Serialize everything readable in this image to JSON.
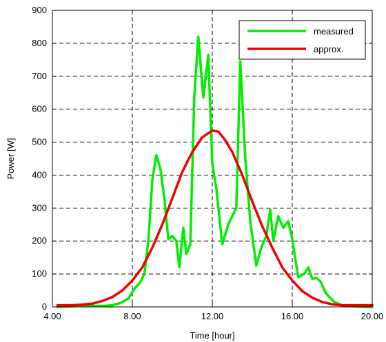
{
  "chart_data": {
    "type": "line",
    "xlabel": "Time [hour]",
    "ylabel": "Power [W]",
    "xlim": [
      4,
      20
    ],
    "ylim": [
      0,
      900
    ],
    "xticks": [
      4,
      8,
      12,
      16,
      20
    ],
    "xtick_labels": [
      "4.00",
      "8.00",
      "12.00",
      "16.00",
      "20.00"
    ],
    "yticks": [
      0,
      100,
      200,
      300,
      400,
      500,
      600,
      700,
      800,
      900
    ],
    "ytick_labels": [
      "0",
      "100",
      "200",
      "300",
      "400",
      "500",
      "600",
      "700",
      "800",
      "900"
    ],
    "grid": true,
    "legend_position": "top-right",
    "series": [
      {
        "name": "measured",
        "color": "#00ee00",
        "points": [
          [
            4.25,
            0
          ],
          [
            5.0,
            2
          ],
          [
            5.8,
            4
          ],
          [
            6.5,
            3
          ],
          [
            7.0,
            5
          ],
          [
            7.4,
            12
          ],
          [
            7.8,
            25
          ],
          [
            8.1,
            55
          ],
          [
            8.4,
            75
          ],
          [
            8.6,
            100
          ],
          [
            8.8,
            200
          ],
          [
            9.0,
            385
          ],
          [
            9.2,
            460
          ],
          [
            9.4,
            420
          ],
          [
            9.6,
            330
          ],
          [
            9.8,
            205
          ],
          [
            10.0,
            215
          ],
          [
            10.2,
            200
          ],
          [
            10.35,
            120
          ],
          [
            10.55,
            240
          ],
          [
            10.7,
            160
          ],
          [
            10.9,
            190
          ],
          [
            11.1,
            640
          ],
          [
            11.3,
            820
          ],
          [
            11.55,
            635
          ],
          [
            11.8,
            765
          ],
          [
            12.0,
            435
          ],
          [
            12.2,
            360
          ],
          [
            12.5,
            190
          ],
          [
            12.8,
            250
          ],
          [
            13.2,
            300
          ],
          [
            13.4,
            745
          ],
          [
            13.65,
            450
          ],
          [
            13.9,
            260
          ],
          [
            14.2,
            125
          ],
          [
            14.45,
            180
          ],
          [
            14.7,
            215
          ],
          [
            14.9,
            295
          ],
          [
            15.05,
            200
          ],
          [
            15.3,
            275
          ],
          [
            15.55,
            240
          ],
          [
            15.8,
            260
          ],
          [
            16.0,
            205
          ],
          [
            16.3,
            90
          ],
          [
            16.6,
            100
          ],
          [
            16.8,
            120
          ],
          [
            17.0,
            85
          ],
          [
            17.2,
            88
          ],
          [
            17.4,
            78
          ],
          [
            17.7,
            40
          ],
          [
            18.1,
            15
          ],
          [
            18.5,
            5
          ],
          [
            19.0,
            2
          ],
          [
            19.6,
            0
          ],
          [
            20.0,
            0
          ]
        ]
      },
      {
        "name": "approx.",
        "color": "#ee0000",
        "points": [
          [
            4.25,
            5
          ],
          [
            5.0,
            5
          ],
          [
            5.5,
            7
          ],
          [
            6.0,
            10
          ],
          [
            6.5,
            18
          ],
          [
            7.0,
            30
          ],
          [
            7.5,
            50
          ],
          [
            8.0,
            80
          ],
          [
            8.5,
            120
          ],
          [
            9.0,
            180
          ],
          [
            9.5,
            250
          ],
          [
            10.0,
            330
          ],
          [
            10.5,
            410
          ],
          [
            11.0,
            470
          ],
          [
            11.5,
            515
          ],
          [
            12.0,
            535
          ],
          [
            12.3,
            532
          ],
          [
            12.6,
            510
          ],
          [
            13.0,
            470
          ],
          [
            13.5,
            400
          ],
          [
            14.0,
            320
          ],
          [
            14.5,
            245
          ],
          [
            15.0,
            180
          ],
          [
            15.5,
            120
          ],
          [
            16.0,
            80
          ],
          [
            16.5,
            48
          ],
          [
            17.0,
            28
          ],
          [
            17.5,
            15
          ],
          [
            18.0,
            8
          ],
          [
            18.5,
            5
          ],
          [
            19.0,
            5
          ],
          [
            20.0,
            5
          ]
        ]
      }
    ]
  }
}
